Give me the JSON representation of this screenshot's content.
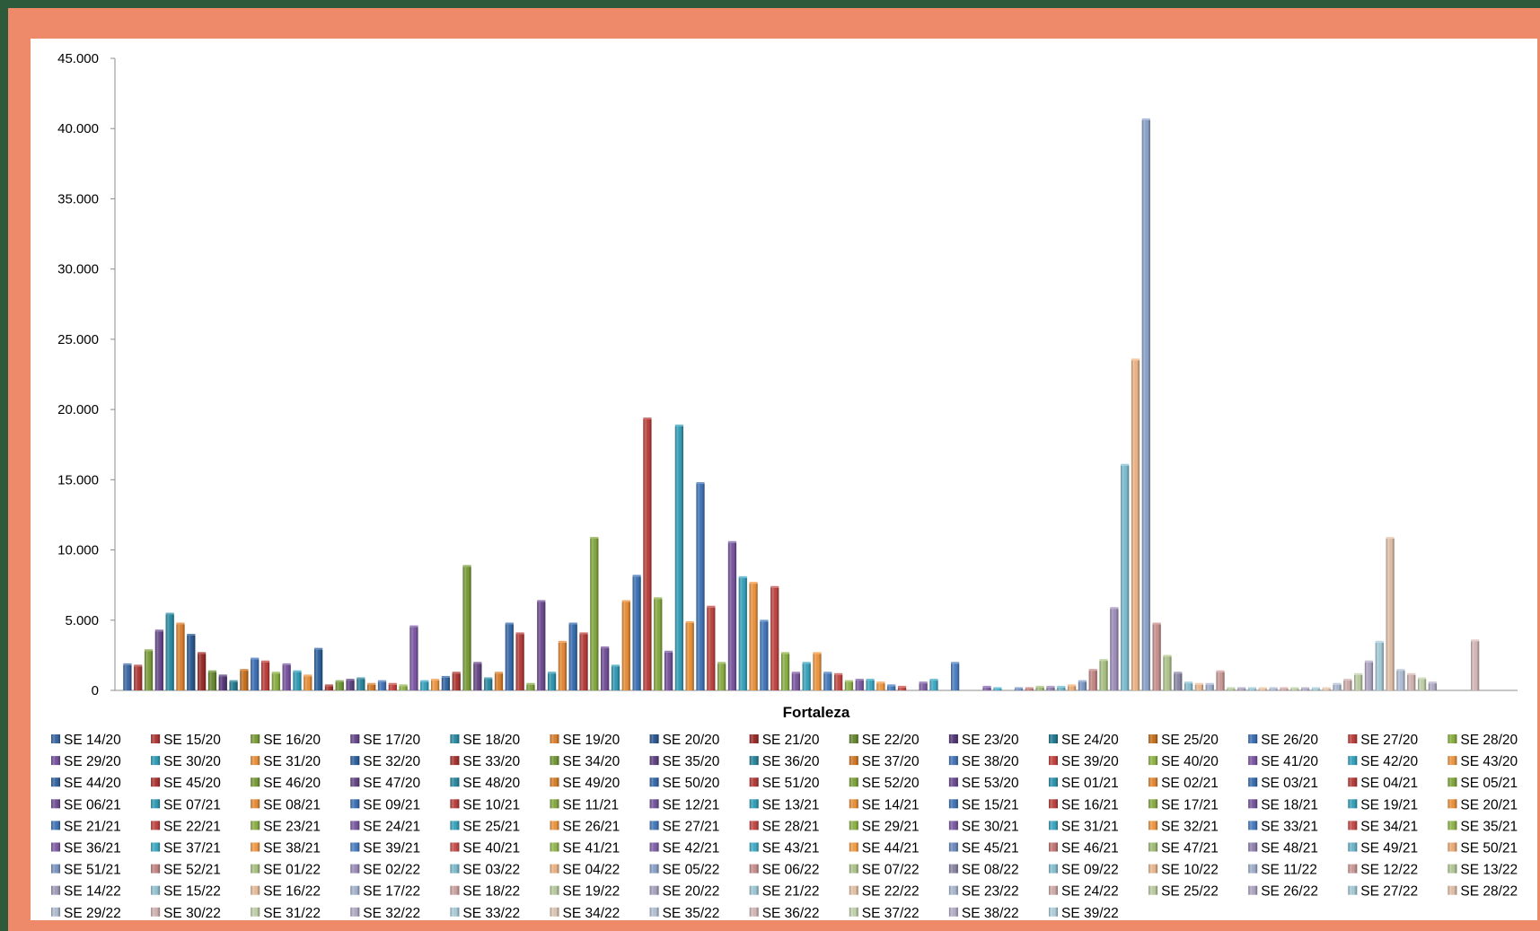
{
  "chart_data": {
    "type": "bar",
    "title": "",
    "xlabel": "Fortaleza",
    "ylabel": "",
    "ylim": [
      0,
      45000
    ],
    "y_ticks": [
      "0",
      "5.000",
      "10.000",
      "15.000",
      "20.000",
      "25.000",
      "30.000",
      "35.000",
      "40.000",
      "45.000"
    ],
    "grid": false,
    "legend_position": "bottom",
    "series": [
      {
        "name": "SE 14/20",
        "values": [
          1800
        ],
        "color": "#3b6aa8"
      },
      {
        "name": "SE 15/20",
        "values": [
          1700
        ],
        "color": "#b23b38"
      },
      {
        "name": "SE 16/20",
        "values": [
          2800
        ],
        "color": "#7da13c"
      },
      {
        "name": "SE 17/20",
        "values": [
          4200
        ],
        "color": "#6a4a8f"
      },
      {
        "name": "SE 18/20",
        "values": [
          5400
        ],
        "color": "#2d8ea6"
      },
      {
        "name": "SE 19/20",
        "values": [
          4700
        ],
        "color": "#e08431"
      },
      {
        "name": "SE 20/20",
        "values": [
          3900
        ],
        "color": "#2b5a93"
      },
      {
        "name": "SE 21/20",
        "values": [
          2600
        ],
        "color": "#9c2e2b"
      },
      {
        "name": "SE 22/20",
        "values": [
          1300
        ],
        "color": "#6a8c33"
      },
      {
        "name": "SE 23/20",
        "values": [
          1000
        ],
        "color": "#56397a"
      },
      {
        "name": "SE 24/20",
        "values": [
          600
        ],
        "color": "#237c93"
      },
      {
        "name": "SE 25/20",
        "values": [
          1400
        ],
        "color": "#c9731f"
      },
      {
        "name": "SE 26/20",
        "values": [
          2200
        ],
        "color": "#3f72b8"
      },
      {
        "name": "SE 27/20",
        "values": [
          2000
        ],
        "color": "#c0413d"
      },
      {
        "name": "SE 28/20",
        "values": [
          1200
        ],
        "color": "#8db342"
      },
      {
        "name": "SE 29/20",
        "values": [
          1800
        ],
        "color": "#7a55a3"
      },
      {
        "name": "SE 30/20",
        "values": [
          1300
        ],
        "color": "#32a0bb"
      },
      {
        "name": "SE 31/20",
        "values": [
          1000
        ],
        "color": "#ee933c"
      },
      {
        "name": "SE 32/20",
        "values": [
          2900
        ],
        "color": "#2e62a0"
      },
      {
        "name": "SE 33/20",
        "values": [
          300
        ],
        "color": "#a93532"
      },
      {
        "name": "SE 34/20",
        "values": [
          600
        ],
        "color": "#759a37"
      },
      {
        "name": "SE 35/20",
        "values": [
          700
        ],
        "color": "#614485"
      },
      {
        "name": "SE 36/20",
        "values": [
          800
        ],
        "color": "#2a879f"
      },
      {
        "name": "SE 37/20",
        "values": [
          400
        ],
        "color": "#d67c2a"
      },
      {
        "name": "SE 38/20",
        "values": [
          600
        ],
        "color": "#4677bd"
      },
      {
        "name": "SE 39/20",
        "values": [
          400
        ],
        "color": "#c84542"
      },
      {
        "name": "SE 40/20",
        "values": [
          300
        ],
        "color": "#93b94a"
      },
      {
        "name": "SE 41/20",
        "values": [
          4500
        ],
        "color": "#7f5aa8"
      },
      {
        "name": "SE 42/20",
        "values": [
          600
        ],
        "color": "#36a6c1"
      },
      {
        "name": "SE 43/20",
        "values": [
          700
        ],
        "color": "#f19a45"
      },
      {
        "name": "SE 44/20",
        "values": [
          900
        ],
        "color": "#3467a6"
      },
      {
        "name": "SE 45/20",
        "values": [
          1200
        ],
        "color": "#b03834"
      },
      {
        "name": "SE 46/20",
        "values": [
          8800
        ],
        "color": "#7b9f39"
      },
      {
        "name": "SE 47/20",
        "values": [
          1900
        ],
        "color": "#684888"
      },
      {
        "name": "SE 48/20",
        "values": [
          800
        ],
        "color": "#2c8ca4"
      },
      {
        "name": "SE 49/20",
        "values": [
          1200
        ],
        "color": "#dc812d"
      },
      {
        "name": "SE 50/20",
        "values": [
          4700
        ],
        "color": "#396cad"
      },
      {
        "name": "SE 51/20",
        "values": [
          4000
        ],
        "color": "#b73d39"
      },
      {
        "name": "SE 52/20",
        "values": [
          400
        ],
        "color": "#82a63e"
      },
      {
        "name": "SE 53/20",
        "values": [
          6300
        ],
        "color": "#6f4e94"
      },
      {
        "name": "SE 01/21",
        "values": [
          1200
        ],
        "color": "#3098b2"
      },
      {
        "name": "SE 02/21",
        "values": [
          3400
        ],
        "color": "#e88c36"
      },
      {
        "name": "SE 03/21",
        "values": [
          4700
        ],
        "color": "#3a70b3"
      },
      {
        "name": "SE 04/21",
        "values": [
          4000
        ],
        "color": "#ba3f3b"
      },
      {
        "name": "SE 05/21",
        "values": [
          10800
        ],
        "color": "#86aa40"
      },
      {
        "name": "SE 06/21",
        "values": [
          3000
        ],
        "color": "#74529a"
      },
      {
        "name": "SE 07/21",
        "values": [
          1700
        ],
        "color": "#339db7"
      },
      {
        "name": "SE 08/21",
        "values": [
          6300
        ],
        "color": "#ec9039"
      },
      {
        "name": "SE 09/21",
        "values": [
          8100
        ],
        "color": "#3d73b7"
      },
      {
        "name": "SE 10/21",
        "values": [
          19300
        ],
        "color": "#bd423e"
      },
      {
        "name": "SE 11/21",
        "values": [
          6500
        ],
        "color": "#89ad43"
      },
      {
        "name": "SE 12/21",
        "values": [
          2700
        ],
        "color": "#77559e"
      },
      {
        "name": "SE 13/21",
        "values": [
          18800
        ],
        "color": "#35a1bb"
      },
      {
        "name": "SE 14/21",
        "values": [
          4800
        ],
        "color": "#ee933c"
      },
      {
        "name": "SE 15/21",
        "values": [
          14700
        ],
        "color": "#4176ba"
      },
      {
        "name": "SE 16/21",
        "values": [
          5900
        ],
        "color": "#c04541"
      },
      {
        "name": "SE 17/21",
        "values": [
          1900
        ],
        "color": "#8cb046"
      },
      {
        "name": "SE 18/21",
        "values": [
          10500
        ],
        "color": "#7a58a1"
      },
      {
        "name": "SE 19/21",
        "values": [
          8000
        ],
        "color": "#38a4bf"
      },
      {
        "name": "SE 20/21",
        "values": [
          7600
        ],
        "color": "#f0963f"
      },
      {
        "name": "SE 21/21",
        "values": [
          4900
        ],
        "color": "#4479bd"
      },
      {
        "name": "SE 22/21",
        "values": [
          7300
        ],
        "color": "#c34844"
      },
      {
        "name": "SE 23/21",
        "values": [
          2600
        ],
        "color": "#8fb349"
      },
      {
        "name": "SE 24/21",
        "values": [
          1200
        ],
        "color": "#7d5ba4"
      },
      {
        "name": "SE 25/21",
        "values": [
          1900
        ],
        "color": "#3ba7c2"
      },
      {
        "name": "SE 26/21",
        "values": [
          2600
        ],
        "color": "#f29942"
      },
      {
        "name": "SE 27/21",
        "values": [
          1200
        ],
        "color": "#477cc0"
      },
      {
        "name": "SE 28/21",
        "values": [
          1100
        ],
        "color": "#c64b47"
      },
      {
        "name": "SE 29/21",
        "values": [
          600
        ],
        "color": "#92b64c"
      },
      {
        "name": "SE 30/21",
        "values": [
          700
        ],
        "color": "#805ea7"
      },
      {
        "name": "SE 31/21",
        "values": [
          700
        ],
        "color": "#3eaac5"
      },
      {
        "name": "SE 32/21",
        "values": [
          500
        ],
        "color": "#f49c45"
      },
      {
        "name": "SE 33/21",
        "values": [
          300
        ],
        "color": "#4a7fc3"
      },
      {
        "name": "SE 34/21",
        "values": [
          200
        ],
        "color": "#c94e4a"
      },
      {
        "name": "SE 35/21",
        "values": [
          0
        ],
        "color": "#95b94f"
      },
      {
        "name": "SE 36/21",
        "values": [
          500
        ],
        "color": "#8361aa"
      },
      {
        "name": "SE 37/21",
        "values": [
          700
        ],
        "color": "#41adc8"
      },
      {
        "name": "SE 38/21",
        "values": [
          0
        ],
        "color": "#f69f48"
      },
      {
        "name": "SE 39/21",
        "values": [
          1900
        ],
        "color": "#4d82c6"
      },
      {
        "name": "SE 40/21",
        "values": [
          0
        ],
        "color": "#cc514d"
      },
      {
        "name": "SE 41/21",
        "values": [
          0
        ],
        "color": "#98bc52"
      },
      {
        "name": "SE 42/21",
        "values": [
          200
        ],
        "color": "#8664ad"
      },
      {
        "name": "SE 43/21",
        "values": [
          100
        ],
        "color": "#44b0cb"
      },
      {
        "name": "SE 44/21",
        "values": [
          0
        ],
        "color": "#f8a24b"
      },
      {
        "name": "SE 45/21",
        "values": [
          100
        ],
        "color": "#6f8fc4"
      },
      {
        "name": "SE 46/21",
        "values": [
          100
        ],
        "color": "#c77a78"
      },
      {
        "name": "SE 47/21",
        "values": [
          200
        ],
        "color": "#a4c27a"
      },
      {
        "name": "SE 48/21",
        "values": [
          200
        ],
        "color": "#9684b4"
      },
      {
        "name": "SE 49/21",
        "values": [
          200
        ],
        "color": "#6fb9cf"
      },
      {
        "name": "SE 50/21",
        "values": [
          300
        ],
        "color": "#f1b07a"
      },
      {
        "name": "SE 51/21",
        "values": [
          600
        ],
        "color": "#7f9bc9"
      },
      {
        "name": "SE 52/21",
        "values": [
          1400
        ],
        "color": "#c98a88"
      },
      {
        "name": "SE 01/22",
        "values": [
          2100
        ],
        "color": "#adc686"
      },
      {
        "name": "SE 02/22",
        "values": [
          5800
        ],
        "color": "#a190bd"
      },
      {
        "name": "SE 03/22",
        "values": [
          16000
        ],
        "color": "#80c0d3"
      },
      {
        "name": "SE 04/22",
        "values": [
          23500
        ],
        "color": "#f0b888"
      },
      {
        "name": "SE 05/22",
        "values": [
          40600
        ],
        "color": "#8ea6cd"
      },
      {
        "name": "SE 06/22",
        "values": [
          4700
        ],
        "color": "#cc9391"
      },
      {
        "name": "SE 07/22",
        "values": [
          2400
        ],
        "color": "#b3c990"
      },
      {
        "name": "SE 08/22",
        "values": [
          1200
        ],
        "color": "#8e8aa8"
      },
      {
        "name": "SE 09/22",
        "values": [
          500
        ],
        "color": "#8cc4d6"
      },
      {
        "name": "SE 10/22",
        "values": [
          400
        ],
        "color": "#eebc94"
      },
      {
        "name": "SE 11/22",
        "values": [
          400
        ],
        "color": "#a3b3cf"
      },
      {
        "name": "SE 12/22",
        "values": [
          1300
        ],
        "color": "#cf9d9b"
      },
      {
        "name": "SE 13/22",
        "values": [
          100
        ],
        "color": "#b8cc9a"
      },
      {
        "name": "SE 14/22",
        "values": [
          100
        ],
        "color": "#a8a0c0"
      },
      {
        "name": "SE 15/22",
        "values": [
          100
        ],
        "color": "#98c8d8"
      },
      {
        "name": "SE 16/22",
        "values": [
          100
        ],
        "color": "#ecc2a0"
      },
      {
        "name": "SE 17/22",
        "values": [
          100
        ],
        "color": "#a9b8d2"
      },
      {
        "name": "SE 18/22",
        "values": [
          100
        ],
        "color": "#d1a7a5"
      },
      {
        "name": "SE 19/22",
        "values": [
          100
        ],
        "color": "#bccfa2"
      },
      {
        "name": "SE 20/22",
        "values": [
          100
        ],
        "color": "#ada6c4"
      },
      {
        "name": "SE 21/22",
        "values": [
          100
        ],
        "color": "#a2ccda"
      },
      {
        "name": "SE 22/22",
        "values": [
          100
        ],
        "color": "#e9c7aa"
      },
      {
        "name": "SE 23/22",
        "values": [
          400
        ],
        "color": "#aebdd5"
      },
      {
        "name": "SE 24/22",
        "values": [
          700
        ],
        "color": "#d3b0ae"
      },
      {
        "name": "SE 25/22",
        "values": [
          1100
        ],
        "color": "#c0d2a8"
      },
      {
        "name": "SE 26/22",
        "values": [
          2000
        ],
        "color": "#b3aac7"
      },
      {
        "name": "SE 27/22",
        "values": [
          3400
        ],
        "color": "#a8cfdc"
      },
      {
        "name": "SE 28/22",
        "values": [
          10800
        ],
        "color": "#e6c4ac"
      },
      {
        "name": "SE 29/22",
        "values": [
          1400
        ],
        "color": "#b4c2d8"
      },
      {
        "name": "SE 30/22",
        "values": [
          1100
        ],
        "color": "#d6b8b6"
      },
      {
        "name": "SE 31/22",
        "values": [
          800
        ],
        "color": "#c4d5ae"
      },
      {
        "name": "SE 32/22",
        "values": [
          500
        ],
        "color": "#b7afca"
      },
      {
        "name": "SE 33/22",
        "values": [
          0
        ],
        "color": "#aed2de"
      },
      {
        "name": "SE 34/22",
        "values": [
          0
        ],
        "color": "#e3cbb8"
      },
      {
        "name": "SE 35/22",
        "values": [
          0
        ],
        "color": "#b9c6da"
      },
      {
        "name": "SE 36/22",
        "values": [
          3500
        ],
        "color": "#d8bdbb"
      },
      {
        "name": "SE 37/22",
        "values": [
          0
        ],
        "color": "#c8d8b3"
      },
      {
        "name": "SE 38/22",
        "values": [
          0
        ],
        "color": "#bbb3cd"
      },
      {
        "name": "SE 39/22",
        "values": [
          0
        ],
        "color": "#b3d5e0"
      }
    ]
  }
}
